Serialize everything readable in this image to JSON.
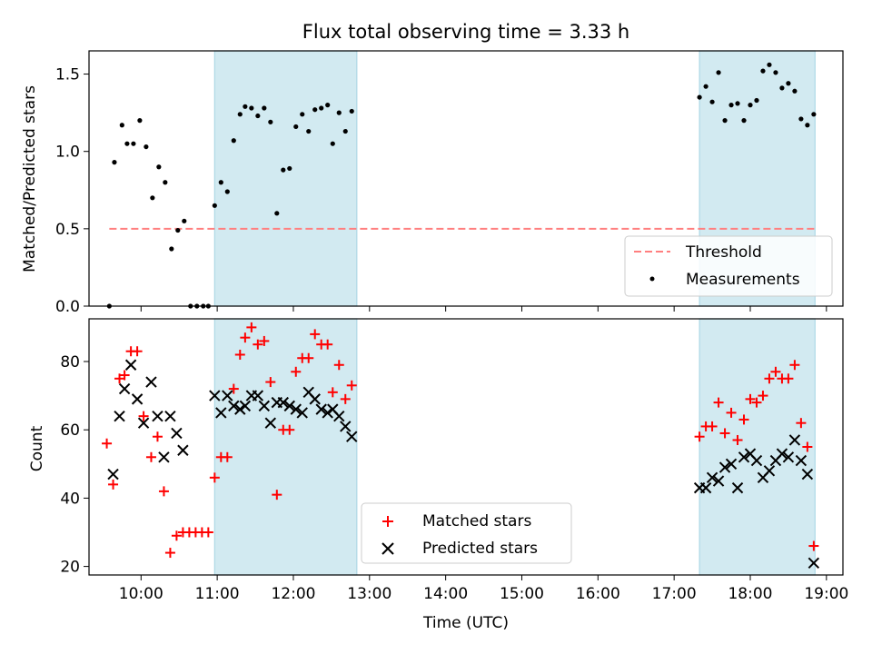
{
  "figure": {
    "title": "Flux total observing time = 3.33 h",
    "xlabel": "Time (UTC)",
    "x_ticks": [
      "10:00",
      "11:00",
      "12:00",
      "13:00",
      "14:00",
      "15:00",
      "16:00",
      "17:00",
      "18:00",
      "19:00"
    ]
  },
  "colors": {
    "shade": "#add8e6",
    "threshold": "#ff7f7f",
    "measurements": "#000000",
    "matched": "#ff0000",
    "predicted": "#000000"
  },
  "chart_data": [
    {
      "type": "scatter",
      "ylabel": "Matched/Predicted stars",
      "xlim": [
        "09:19",
        "19:13"
      ],
      "ylim": [
        0,
        1.65
      ],
      "y_ticks": [
        "0.0",
        "0.5",
        "1.0",
        "1.5"
      ],
      "shaded_intervals": [
        [
          "10:58",
          "12:50"
        ],
        [
          "17:20",
          "18:51"
        ]
      ],
      "threshold": {
        "y": 0.5,
        "x_range": [
          "09:35",
          "18:51"
        ]
      },
      "legend": {
        "location": "lower right",
        "entries": [
          "Threshold",
          "Measurements"
        ]
      },
      "series": [
        {
          "name": "Measurements",
          "points": [
            [
              "09:35",
              0.0
            ],
            [
              "09:39",
              0.93
            ],
            [
              "09:45",
              1.17
            ],
            [
              "09:49",
              1.05
            ],
            [
              "09:54",
              1.05
            ],
            [
              "09:59",
              1.2
            ],
            [
              "10:04",
              1.03
            ],
            [
              "10:09",
              0.7
            ],
            [
              "10:14",
              0.9
            ],
            [
              "10:19",
              0.8
            ],
            [
              "10:24",
              0.37
            ],
            [
              "10:29",
              0.49
            ],
            [
              "10:34",
              0.55
            ],
            [
              "10:39",
              0.0
            ],
            [
              "10:44",
              0.0
            ],
            [
              "10:49",
              0.0
            ],
            [
              "10:53",
              0.0
            ],
            [
              "10:58",
              0.65
            ],
            [
              "11:03",
              0.8
            ],
            [
              "11:08",
              0.74
            ],
            [
              "11:13",
              1.07
            ],
            [
              "11:18",
              1.24
            ],
            [
              "11:22",
              1.29
            ],
            [
              "11:27",
              1.28
            ],
            [
              "11:32",
              1.23
            ],
            [
              "11:37",
              1.28
            ],
            [
              "11:42",
              1.19
            ],
            [
              "11:47",
              0.6
            ],
            [
              "11:52",
              0.88
            ],
            [
              "11:57",
              0.89
            ],
            [
              "12:02",
              1.16
            ],
            [
              "12:07",
              1.24
            ],
            [
              "12:12",
              1.13
            ],
            [
              "12:17",
              1.27
            ],
            [
              "12:22",
              1.28
            ],
            [
              "12:27",
              1.3
            ],
            [
              "12:31",
              1.05
            ],
            [
              "12:36",
              1.25
            ],
            [
              "12:41",
              1.13
            ],
            [
              "12:46",
              1.26
            ],
            [
              "17:20",
              1.35
            ],
            [
              "17:25",
              1.42
            ],
            [
              "17:30",
              1.32
            ],
            [
              "17:35",
              1.51
            ],
            [
              "17:40",
              1.2
            ],
            [
              "17:45",
              1.3
            ],
            [
              "17:50",
              1.31
            ],
            [
              "17:55",
              1.2
            ],
            [
              "18:00",
              1.3
            ],
            [
              "18:05",
              1.33
            ],
            [
              "18:10",
              1.52
            ],
            [
              "18:15",
              1.56
            ],
            [
              "18:20",
              1.51
            ],
            [
              "18:25",
              1.41
            ],
            [
              "18:30",
              1.44
            ],
            [
              "18:35",
              1.39
            ],
            [
              "18:40",
              1.21
            ],
            [
              "18:45",
              1.17
            ],
            [
              "18:50",
              1.24
            ]
          ]
        }
      ]
    },
    {
      "type": "scatter",
      "ylabel": "Count",
      "xlabel": "Time (UTC)",
      "xlim": [
        "09:19",
        "19:13"
      ],
      "ylim": [
        17.5,
        92.5
      ],
      "y_ticks": [
        "20",
        "40",
        "60",
        "80"
      ],
      "shaded_intervals": [
        [
          "10:58",
          "12:50"
        ],
        [
          "17:20",
          "18:51"
        ]
      ],
      "legend": {
        "location": "lower center",
        "entries": [
          "Matched stars",
          "Predicted stars"
        ]
      },
      "series": [
        {
          "name": "Matched stars",
          "marker": "+",
          "points": [
            [
              "09:33",
              56
            ],
            [
              "09:38",
              44
            ],
            [
              "09:43",
              75
            ],
            [
              "09:47",
              76
            ],
            [
              "09:52",
              83
            ],
            [
              "09:57",
              83
            ],
            [
              "10:02",
              64
            ],
            [
              "10:08",
              52
            ],
            [
              "10:13",
              58
            ],
            [
              "10:18",
              42
            ],
            [
              "10:23",
              24
            ],
            [
              "10:28",
              29
            ],
            [
              "10:33",
              30
            ],
            [
              "10:38",
              30
            ],
            [
              "10:43",
              30
            ],
            [
              "10:48",
              30
            ],
            [
              "10:53",
              30
            ],
            [
              "10:58",
              46
            ],
            [
              "11:03",
              52
            ],
            [
              "11:08",
              52
            ],
            [
              "11:13",
              72
            ],
            [
              "11:18",
              82
            ],
            [
              "11:22",
              87
            ],
            [
              "11:27",
              90
            ],
            [
              "11:32",
              85
            ],
            [
              "11:37",
              86
            ],
            [
              "11:42",
              74
            ],
            [
              "11:47",
              41
            ],
            [
              "11:52",
              60
            ],
            [
              "11:57",
              60
            ],
            [
              "12:02",
              77
            ],
            [
              "12:07",
              81
            ],
            [
              "12:12",
              81
            ],
            [
              "12:17",
              88
            ],
            [
              "12:22",
              85
            ],
            [
              "12:27",
              85
            ],
            [
              "12:31",
              71
            ],
            [
              "12:36",
              79
            ],
            [
              "12:41",
              69
            ],
            [
              "12:46",
              73
            ],
            [
              "17:20",
              58
            ],
            [
              "17:25",
              61
            ],
            [
              "17:30",
              61
            ],
            [
              "17:35",
              68
            ],
            [
              "17:40",
              59
            ],
            [
              "17:45",
              65
            ],
            [
              "17:50",
              57
            ],
            [
              "17:55",
              63
            ],
            [
              "18:00",
              69
            ],
            [
              "18:05",
              68
            ],
            [
              "18:10",
              70
            ],
            [
              "18:15",
              75
            ],
            [
              "18:20",
              77
            ],
            [
              "18:25",
              75
            ],
            [
              "18:30",
              75
            ],
            [
              "18:35",
              79
            ],
            [
              "18:40",
              62
            ],
            [
              "18:45",
              55
            ],
            [
              "18:50",
              26
            ]
          ]
        },
        {
          "name": "Predicted stars",
          "marker": "x",
          "points": [
            [
              "09:38",
              47
            ],
            [
              "09:43",
              64
            ],
            [
              "09:47",
              72
            ],
            [
              "09:52",
              79
            ],
            [
              "09:57",
              69
            ],
            [
              "10:02",
              62
            ],
            [
              "10:08",
              74
            ],
            [
              "10:13",
              64
            ],
            [
              "10:18",
              52
            ],
            [
              "10:23",
              64
            ],
            [
              "10:28",
              59
            ],
            [
              "10:33",
              54
            ],
            [
              "10:58",
              70
            ],
            [
              "11:03",
              65
            ],
            [
              "11:08",
              70
            ],
            [
              "11:13",
              67
            ],
            [
              "11:18",
              66
            ],
            [
              "11:22",
              67
            ],
            [
              "11:27",
              70
            ],
            [
              "11:32",
              70
            ],
            [
              "11:37",
              67
            ],
            [
              "11:42",
              62
            ],
            [
              "11:47",
              68
            ],
            [
              "11:52",
              68
            ],
            [
              "11:57",
              67
            ],
            [
              "12:02",
              66
            ],
            [
              "12:07",
              65
            ],
            [
              "12:12",
              71
            ],
            [
              "12:17",
              69
            ],
            [
              "12:22",
              66
            ],
            [
              "12:27",
              65
            ],
            [
              "12:31",
              66
            ],
            [
              "12:36",
              64
            ],
            [
              "12:41",
              61
            ],
            [
              "12:46",
              58
            ],
            [
              "17:20",
              43
            ],
            [
              "17:25",
              43
            ],
            [
              "17:30",
              46
            ],
            [
              "17:35",
              45
            ],
            [
              "17:40",
              49
            ],
            [
              "17:45",
              50
            ],
            [
              "17:50",
              43
            ],
            [
              "17:55",
              52
            ],
            [
              "18:00",
              53
            ],
            [
              "18:05",
              51
            ],
            [
              "18:10",
              46
            ],
            [
              "18:15",
              48
            ],
            [
              "18:20",
              51
            ],
            [
              "18:25",
              53
            ],
            [
              "18:30",
              52
            ],
            [
              "18:35",
              57
            ],
            [
              "18:40",
              51
            ],
            [
              "18:45",
              47
            ],
            [
              "18:50",
              21
            ]
          ]
        }
      ]
    }
  ]
}
